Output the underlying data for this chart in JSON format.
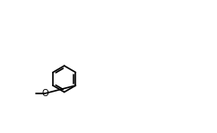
{
  "bg_color": "#ffffff",
  "line_color": "#000000",
  "line_width": 1.2,
  "figsize": [
    2.42,
    1.48
  ],
  "dpi": 100
}
